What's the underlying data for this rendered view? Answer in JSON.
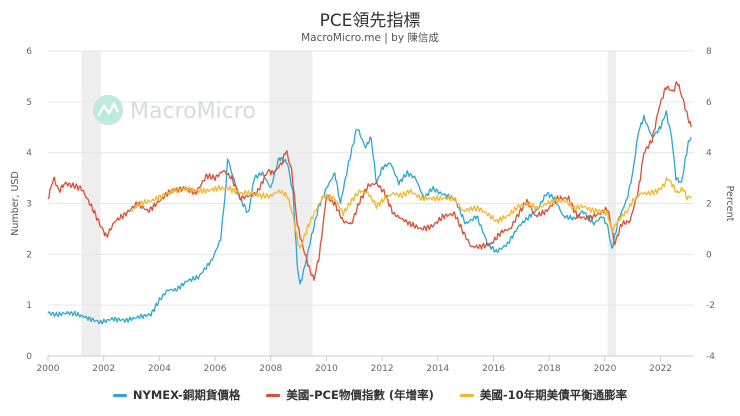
{
  "title": "PCE領先指標",
  "subtitle": "MacroMicro.me | by 陳信成",
  "watermark": "MacroMicro",
  "chart_data": {
    "type": "line",
    "x_range": [
      2000,
      2023.2
    ],
    "x_ticks": [
      "2000",
      "2002",
      "2004",
      "2006",
      "2008",
      "2010",
      "2012",
      "2014",
      "2016",
      "2018",
      "2020",
      "2022"
    ],
    "left_axis": {
      "label": "Number, USD",
      "range": [
        0,
        6
      ],
      "ticks": [
        "0",
        "1",
        "2",
        "3",
        "4",
        "5",
        "6"
      ]
    },
    "right_axis": {
      "label": "Percent",
      "range": [
        -4,
        8
      ],
      "ticks": [
        "-4",
        "-2",
        "0",
        "2",
        "4",
        "6",
        "8"
      ]
    },
    "recessions": [
      [
        2001.2,
        2001.9
      ],
      [
        2007.95,
        2009.5
      ],
      [
        2020.1,
        2020.4
      ]
    ],
    "series": [
      {
        "name": "NYMEX-銅期貨價格",
        "axis": "left",
        "color": "#2ba7cf",
        "points": [
          [
            2000.0,
            0.85
          ],
          [
            2000.3,
            0.81
          ],
          [
            2000.7,
            0.85
          ],
          [
            2001.0,
            0.83
          ],
          [
            2001.4,
            0.75
          ],
          [
            2001.9,
            0.66
          ],
          [
            2002.3,
            0.73
          ],
          [
            2002.8,
            0.7
          ],
          [
            2003.2,
            0.76
          ],
          [
            2003.7,
            0.82
          ],
          [
            2004.0,
            1.1
          ],
          [
            2004.3,
            1.3
          ],
          [
            2004.6,
            1.3
          ],
          [
            2005.0,
            1.48
          ],
          [
            2005.4,
            1.55
          ],
          [
            2005.9,
            1.9
          ],
          [
            2006.2,
            2.3
          ],
          [
            2006.4,
            3.4
          ],
          [
            2006.45,
            3.9
          ],
          [
            2006.6,
            3.6
          ],
          [
            2006.9,
            3.1
          ],
          [
            2007.2,
            2.8
          ],
          [
            2007.4,
            3.5
          ],
          [
            2007.7,
            3.6
          ],
          [
            2008.0,
            3.3
          ],
          [
            2008.3,
            3.9
          ],
          [
            2008.6,
            3.8
          ],
          [
            2008.8,
            3.2
          ],
          [
            2008.95,
            1.8
          ],
          [
            2009.05,
            1.4
          ],
          [
            2009.15,
            1.6
          ],
          [
            2009.4,
            2.2
          ],
          [
            2009.7,
            2.9
          ],
          [
            2010.0,
            3.3
          ],
          [
            2010.3,
            3.6
          ],
          [
            2010.5,
            3.0
          ],
          [
            2010.8,
            3.8
          ],
          [
            2011.1,
            4.5
          ],
          [
            2011.4,
            4.1
          ],
          [
            2011.6,
            4.3
          ],
          [
            2011.8,
            3.4
          ],
          [
            2012.0,
            3.7
          ],
          [
            2012.3,
            3.8
          ],
          [
            2012.6,
            3.4
          ],
          [
            2012.9,
            3.6
          ],
          [
            2013.2,
            3.5
          ],
          [
            2013.5,
            3.1
          ],
          [
            2013.8,
            3.3
          ],
          [
            2014.1,
            3.2
          ],
          [
            2014.6,
            3.1
          ],
          [
            2015.0,
            2.6
          ],
          [
            2015.4,
            2.75
          ],
          [
            2015.8,
            2.2
          ],
          [
            2016.1,
            2.05
          ],
          [
            2016.5,
            2.2
          ],
          [
            2016.9,
            2.55
          ],
          [
            2017.2,
            2.7
          ],
          [
            2017.6,
            2.9
          ],
          [
            2017.9,
            3.2
          ],
          [
            2018.2,
            3.1
          ],
          [
            2018.5,
            2.75
          ],
          [
            2018.9,
            2.7
          ],
          [
            2019.2,
            2.85
          ],
          [
            2019.6,
            2.6
          ],
          [
            2019.9,
            2.75
          ],
          [
            2020.1,
            2.55
          ],
          [
            2020.25,
            2.1
          ],
          [
            2020.5,
            2.7
          ],
          [
            2020.8,
            3.1
          ],
          [
            2021.0,
            3.6
          ],
          [
            2021.2,
            4.4
          ],
          [
            2021.4,
            4.7
          ],
          [
            2021.7,
            4.3
          ],
          [
            2022.0,
            4.5
          ],
          [
            2022.2,
            4.8
          ],
          [
            2022.4,
            4.3
          ],
          [
            2022.55,
            3.5
          ],
          [
            2022.75,
            3.4
          ],
          [
            2022.9,
            3.9
          ],
          [
            2023.0,
            4.2
          ],
          [
            2023.1,
            4.3
          ]
        ]
      },
      {
        "name": "美國-PCE物價指數 (年增率)",
        "axis": "right",
        "color": "#d94e35",
        "points": [
          [
            2000.0,
            2.2
          ],
          [
            2000.2,
            3.0
          ],
          [
            2000.4,
            2.5
          ],
          [
            2000.6,
            2.8
          ],
          [
            2000.9,
            2.7
          ],
          [
            2001.2,
            2.6
          ],
          [
            2001.6,
            1.8
          ],
          [
            2001.9,
            1.1
          ],
          [
            2002.1,
            0.7
          ],
          [
            2002.4,
            1.3
          ],
          [
            2002.8,
            1.6
          ],
          [
            2003.2,
            2.0
          ],
          [
            2003.6,
            1.7
          ],
          [
            2004.0,
            2.1
          ],
          [
            2004.4,
            2.5
          ],
          [
            2004.9,
            2.6
          ],
          [
            2005.3,
            2.4
          ],
          [
            2005.7,
            3.1
          ],
          [
            2006.0,
            3.0
          ],
          [
            2006.3,
            3.3
          ],
          [
            2006.6,
            3.0
          ],
          [
            2006.9,
            2.2
          ],
          [
            2007.2,
            2.3
          ],
          [
            2007.5,
            2.4
          ],
          [
            2007.9,
            3.3
          ],
          [
            2008.1,
            3.2
          ],
          [
            2008.4,
            3.6
          ],
          [
            2008.55,
            4.1
          ],
          [
            2008.75,
            3.3
          ],
          [
            2008.95,
            1.2
          ],
          [
            2009.15,
            0.3
          ],
          [
            2009.4,
            -0.6
          ],
          [
            2009.55,
            -1.0
          ],
          [
            2009.75,
            0.0
          ],
          [
            2010.0,
            2.3
          ],
          [
            2010.3,
            2.0
          ],
          [
            2010.6,
            1.3
          ],
          [
            2010.9,
            1.2
          ],
          [
            2011.2,
            2.1
          ],
          [
            2011.5,
            2.7
          ],
          [
            2011.8,
            2.8
          ],
          [
            2012.1,
            2.4
          ],
          [
            2012.4,
            1.6
          ],
          [
            2012.7,
            1.4
          ],
          [
            2013.0,
            1.2
          ],
          [
            2013.4,
            1.0
          ],
          [
            2013.8,
            1.1
          ],
          [
            2014.2,
            1.5
          ],
          [
            2014.6,
            1.6
          ],
          [
            2014.9,
            0.9
          ],
          [
            2015.2,
            0.3
          ],
          [
            2015.5,
            0.3
          ],
          [
            2015.9,
            0.4
          ],
          [
            2016.3,
            0.9
          ],
          [
            2016.6,
            1.0
          ],
          [
            2016.9,
            1.6
          ],
          [
            2017.2,
            2.1
          ],
          [
            2017.5,
            1.5
          ],
          [
            2017.9,
            1.7
          ],
          [
            2018.3,
            2.2
          ],
          [
            2018.7,
            2.2
          ],
          [
            2019.0,
            1.5
          ],
          [
            2019.4,
            1.4
          ],
          [
            2019.8,
            1.6
          ],
          [
            2020.1,
            1.8
          ],
          [
            2020.35,
            0.4
          ],
          [
            2020.6,
            1.2
          ],
          [
            2020.9,
            1.3
          ],
          [
            2021.2,
            2.5
          ],
          [
            2021.4,
            4.0
          ],
          [
            2021.7,
            4.5
          ],
          [
            2021.95,
            5.8
          ],
          [
            2022.2,
            6.6
          ],
          [
            2022.45,
            6.4
          ],
          [
            2022.6,
            6.8
          ],
          [
            2022.8,
            6.1
          ],
          [
            2022.95,
            5.5
          ],
          [
            2023.1,
            5.0
          ]
        ]
      },
      {
        "name": "美國-10年期美債平衡通膨率",
        "axis": "right",
        "color": "#f2b731",
        "points": [
          [
            2003.0,
            1.7
          ],
          [
            2003.3,
            2.0
          ],
          [
            2003.7,
            2.1
          ],
          [
            2004.1,
            2.3
          ],
          [
            2004.5,
            2.5
          ],
          [
            2004.9,
            2.6
          ],
          [
            2005.3,
            2.5
          ],
          [
            2005.7,
            2.5
          ],
          [
            2006.1,
            2.6
          ],
          [
            2006.5,
            2.6
          ],
          [
            2006.9,
            2.4
          ],
          [
            2007.3,
            2.4
          ],
          [
            2007.7,
            2.3
          ],
          [
            2008.0,
            2.3
          ],
          [
            2008.3,
            2.5
          ],
          [
            2008.6,
            2.3
          ],
          [
            2008.8,
            1.5
          ],
          [
            2008.95,
            0.6
          ],
          [
            2009.05,
            0.2
          ],
          [
            2009.3,
            1.0
          ],
          [
            2009.6,
            1.7
          ],
          [
            2009.9,
            2.3
          ],
          [
            2010.3,
            2.2
          ],
          [
            2010.6,
            1.6
          ],
          [
            2010.9,
            2.1
          ],
          [
            2011.2,
            2.5
          ],
          [
            2011.5,
            2.4
          ],
          [
            2011.8,
            1.9
          ],
          [
            2012.1,
            2.2
          ],
          [
            2012.4,
            2.4
          ],
          [
            2012.7,
            2.3
          ],
          [
            2013.0,
            2.5
          ],
          [
            2013.4,
            2.2
          ],
          [
            2013.8,
            2.2
          ],
          [
            2014.2,
            2.2
          ],
          [
            2014.6,
            2.2
          ],
          [
            2014.9,
            1.7
          ],
          [
            2015.2,
            1.8
          ],
          [
            2015.5,
            1.8
          ],
          [
            2015.9,
            1.5
          ],
          [
            2016.1,
            1.3
          ],
          [
            2016.5,
            1.5
          ],
          [
            2016.9,
            1.9
          ],
          [
            2017.2,
            2.0
          ],
          [
            2017.6,
            1.8
          ],
          [
            2017.9,
            2.0
          ],
          [
            2018.2,
            2.1
          ],
          [
            2018.6,
            2.1
          ],
          [
            2018.9,
            1.8
          ],
          [
            2019.2,
            1.9
          ],
          [
            2019.6,
            1.7
          ],
          [
            2019.9,
            1.7
          ],
          [
            2020.1,
            1.6
          ],
          [
            2020.25,
            0.9
          ],
          [
            2020.5,
            1.4
          ],
          [
            2020.8,
            1.7
          ],
          [
            2021.0,
            2.1
          ],
          [
            2021.3,
            2.4
          ],
          [
            2021.6,
            2.4
          ],
          [
            2021.9,
            2.5
          ],
          [
            2022.1,
            2.7
          ],
          [
            2022.25,
            3.0
          ],
          [
            2022.45,
            2.7
          ],
          [
            2022.6,
            2.4
          ],
          [
            2022.8,
            2.6
          ],
          [
            2022.95,
            2.2
          ],
          [
            2023.1,
            2.3
          ]
        ]
      }
    ]
  }
}
